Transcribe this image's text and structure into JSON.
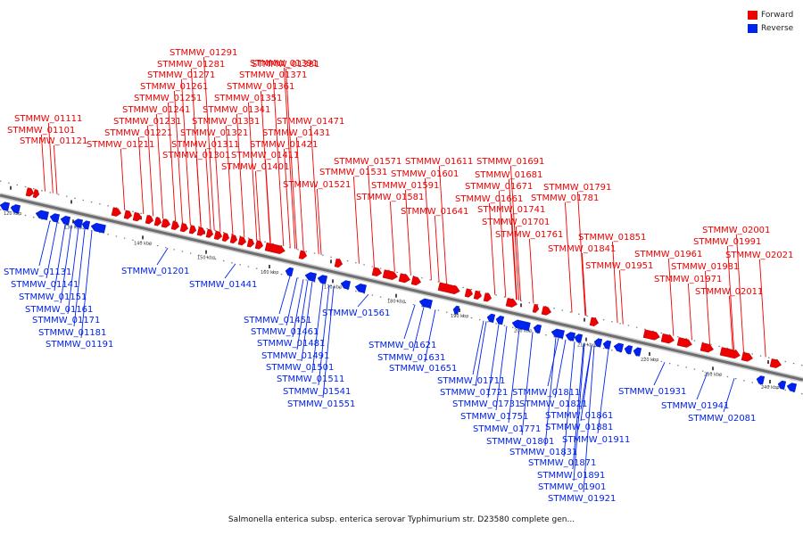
{
  "colors": {
    "forward": "#ee0000",
    "reverse": "#0022ee",
    "axis": "#8a8a8a"
  },
  "legend": [
    {
      "label": "Forward",
      "color": "#ee0000"
    },
    {
      "label": "Reverse",
      "color": "#0022ee"
    }
  ],
  "caption": "Salmonella enterica subsp. enterica serovar Typhimurium str. D23580 complete gen...",
  "ticks": [
    "120 kbp",
    "130 kbp",
    "140 kbp",
    "150 kbp",
    "160 kbp",
    "170 kbp",
    "180 kbp",
    "190 kbp",
    "200 kbp",
    "210 kbp",
    "220 kbp",
    "230 kbp",
    "240 kbp"
  ],
  "forward_labels": [
    "STMMW_01111",
    "STMMW_01101",
    "STMMW_01121",
    "STMMW_01211",
    "STMMW_01221",
    "STMMW_01231",
    "STMMW_01241",
    "STMMW_01251",
    "STMMW_01261",
    "STMMW_01271",
    "STMMW_01281",
    "STMMW_01291",
    "STMMW_01301",
    "STMMW_01311",
    "STMMW_01321",
    "STMMW_01331",
    "STMMW_01341",
    "STMMW_01351",
    "STMMW_01361",
    "STMMW_01371",
    "STMMW_01381",
    "STMMW_01391",
    "STMMW_01401",
    "STMMW_01411",
    "STMMW_01421",
    "STMMW_01431",
    "STMMW_01471",
    "STMMW_01521",
    "STMMW_01531",
    "STMMW_01571",
    "STMMW_01581",
    "STMMW_01591",
    "STMMW_01601",
    "STMMW_01611",
    "STMMW_01641",
    "STMMW_01661",
    "STMMW_01671",
    "STMMW_01681",
    "STMMW_01691",
    "STMMW_01701",
    "STMMW_01741",
    "STMMW_01761",
    "STMMW_01781",
    "STMMW_01791",
    "STMMW_01841",
    "STMMW_01851",
    "STMMW_01951",
    "STMMW_01961",
    "STMMW_01971",
    "STMMW_01981",
    "STMMW_01991",
    "STMMW_02001",
    "STMMW_02011",
    "STMMW_02021"
  ],
  "reverse_labels": [
    "STMMW_01131",
    "STMMW_01141",
    "STMMW_01151",
    "STMMW_01161",
    "STMMW_01171",
    "STMMW_01181",
    "STMMW_01191",
    "STMMW_01201",
    "STMMW_01441",
    "STMMW_01451",
    "STMMW_01461",
    "STMMW_01481",
    "STMMW_01491",
    "STMMW_01501",
    "STMMW_01511",
    "STMMW_01541",
    "STMMW_01551",
    "STMMW_01561",
    "STMMW_01621",
    "STMMW_01631",
    "STMMW_01651",
    "STMMW_01711",
    "STMMW_01721",
    "STMMW_01731",
    "STMMW_01751",
    "STMMW_01771",
    "STMMW_01801",
    "STMMW_01811",
    "STMMW_01821",
    "STMMW_01831",
    "STMMW_01861",
    "STMMW_01871",
    "STMMW_01881",
    "STMMW_01891",
    "STMMW_01901",
    "STMMW_01911",
    "STMMW_01921",
    "STMMW_01931",
    "STMMW_01941",
    "STMMW_02081"
  ]
}
